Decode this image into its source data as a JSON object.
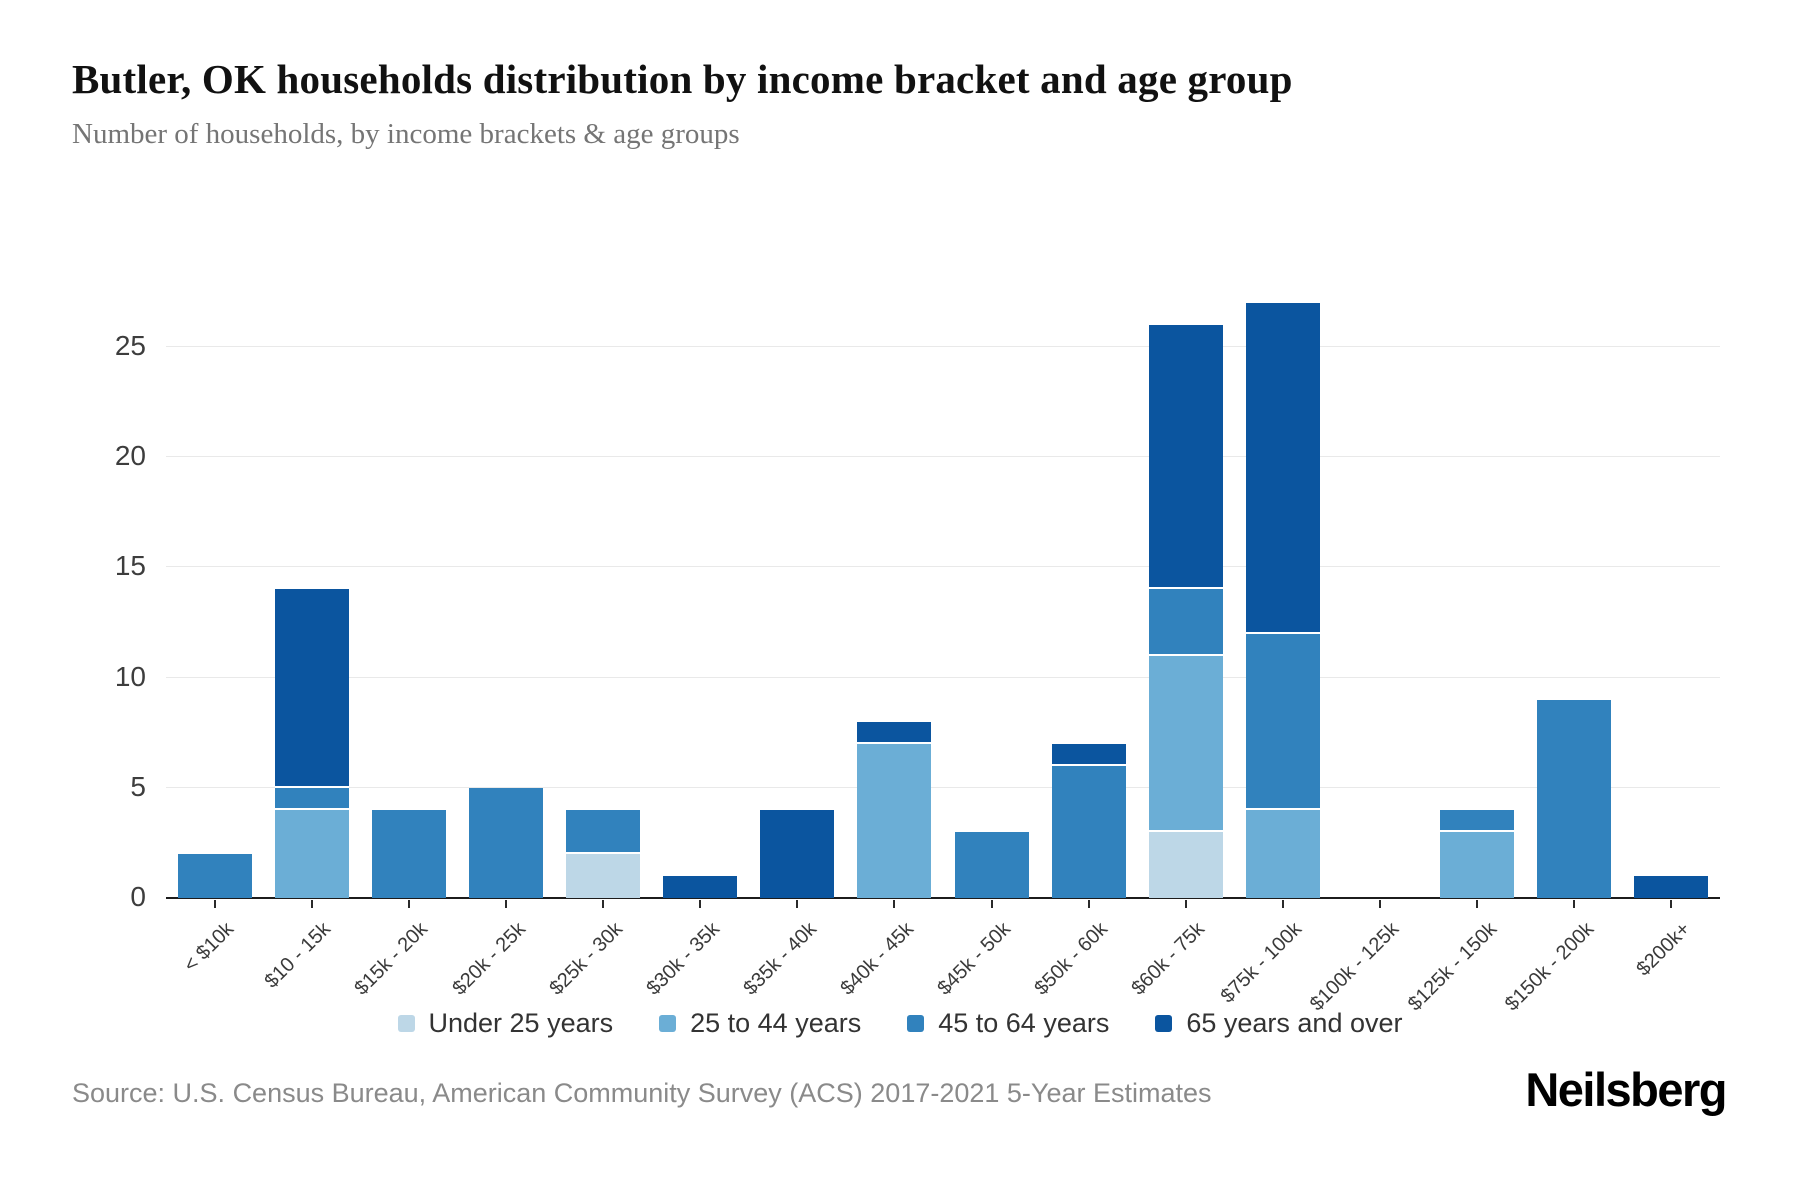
{
  "header": {
    "title": "Butler, OK households distribution by income bracket and age group",
    "subtitle": "Number of households, by income brackets & age groups"
  },
  "chart_data": {
    "type": "bar",
    "stacked": true,
    "title": "Butler, OK households distribution by income bracket and age group",
    "subtitle": "Number of households, by income brackets & age groups",
    "xlabel": "",
    "ylabel": "",
    "categories": [
      "< $10k",
      "$10 - 15k",
      "$15k - 20k",
      "$20k - 25k",
      "$25k - 30k",
      "$30k - 35k",
      "$35k - 40k",
      "$40k - 45k",
      "$45k - 50k",
      "$50k - 60k",
      "$60k - 75k",
      "$75k - 100k",
      "$100k - 125k",
      "$125k - 150k",
      "$150k - 200k",
      "$200k+"
    ],
    "series": [
      {
        "name": "Under 25 years",
        "color": "#bdd7e7",
        "values": [
          0,
          0,
          0,
          0,
          2,
          0,
          0,
          0,
          0,
          0,
          3,
          0,
          0,
          0,
          0,
          0
        ]
      },
      {
        "name": "25 to 44 years",
        "color": "#6baed6",
        "values": [
          0,
          4,
          0,
          0,
          0,
          0,
          0,
          7,
          0,
          0,
          8,
          4,
          0,
          3,
          0,
          0
        ]
      },
      {
        "name": "45 to 64 years",
        "color": "#3182bd",
        "values": [
          2,
          1,
          4,
          5,
          2,
          0,
          0,
          0,
          3,
          6,
          3,
          8,
          0,
          1,
          9,
          0
        ]
      },
      {
        "name": "65 years and over",
        "color": "#0b559f",
        "values": [
          0,
          9,
          0,
          0,
          0,
          1,
          4,
          1,
          0,
          1,
          12,
          15,
          0,
          0,
          0,
          1
        ]
      }
    ],
    "totals": [
      2,
      14,
      4,
      5,
      4,
      1,
      4,
      8,
      3,
      7,
      26,
      27,
      0,
      4,
      9,
      1
    ],
    "yticks": [
      0,
      5,
      10,
      15,
      20,
      25
    ],
    "ylim": [
      0,
      27.2
    ],
    "grid": true,
    "legend_position": "bottom"
  },
  "footer": {
    "source": "Source: U.S. Census Bureau, American Community Survey (ACS) 2017-2021 5-Year Estimates",
    "logo": "Neilsberg"
  }
}
